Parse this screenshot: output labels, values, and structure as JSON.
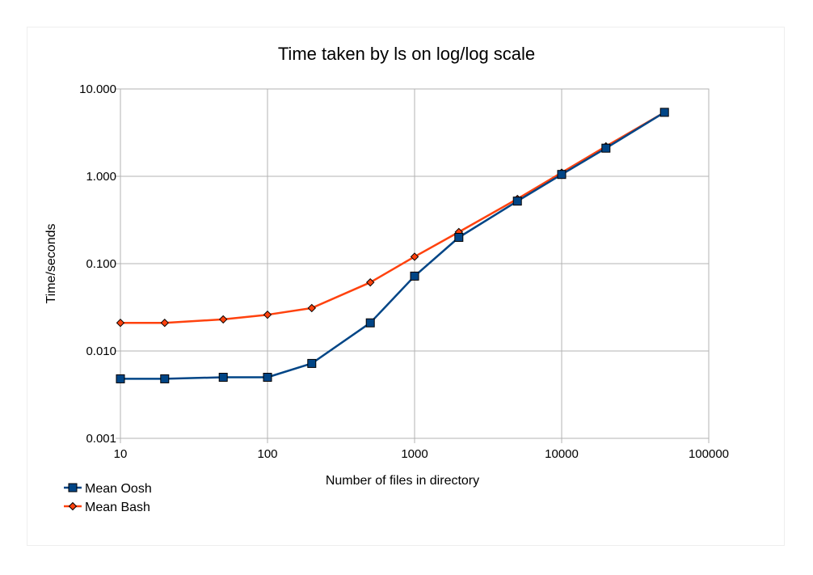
{
  "chart_data": {
    "type": "line",
    "title": "Time taken by ls on log/log scale",
    "xlabel": "Number of files in directory",
    "ylabel": "Time/seconds",
    "xscale": "log",
    "yscale": "log",
    "xlim": [
      10,
      100000
    ],
    "ylim": [
      0.001,
      10
    ],
    "x_ticks": [
      10,
      100,
      1000,
      10000,
      100000
    ],
    "x_tick_labels": [
      "10",
      "100",
      "1000",
      "10000",
      "100000"
    ],
    "y_ticks": [
      0.001,
      0.01,
      0.1,
      1,
      10
    ],
    "y_tick_labels": [
      "0.001",
      "0.010",
      "0.100",
      "1.000",
      "10.000"
    ],
    "grid": true,
    "legend_position": "bottom-left",
    "series": [
      {
        "name": "Mean Oosh",
        "color": "#004586",
        "marker": "square",
        "x": [
          10,
          20,
          50,
          100,
          200,
          500,
          1000,
          2000,
          5000,
          10000,
          20000,
          50000
        ],
        "values": [
          0.0048,
          0.0048,
          0.005,
          0.005,
          0.0072,
          0.021,
          0.072,
          0.2,
          0.52,
          1.05,
          2.1,
          5.4
        ]
      },
      {
        "name": "Mean Bash",
        "color": "#ff420e",
        "marker": "diamond",
        "x": [
          10,
          20,
          50,
          100,
          200,
          500,
          1000,
          2000,
          5000,
          10000,
          20000,
          50000
        ],
        "values": [
          0.021,
          0.021,
          0.023,
          0.026,
          0.031,
          0.061,
          0.12,
          0.23,
          0.55,
          1.1,
          2.2,
          5.4
        ]
      }
    ]
  }
}
